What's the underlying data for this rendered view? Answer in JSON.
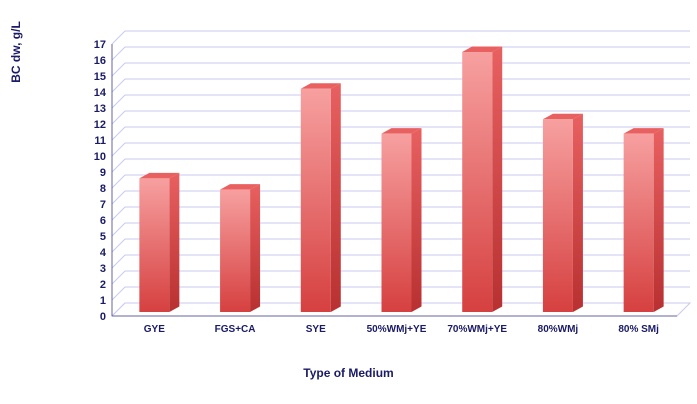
{
  "chart_data": {
    "type": "bar",
    "title": "",
    "xlabel": "Type of Medium",
    "ylabel": "BC dw, g/L",
    "categories": [
      "GYE",
      "FGS+CA",
      "SYE",
      "50%WMj+YE",
      "70%WMj+YE",
      "80%WMj",
      "80% SMj"
    ],
    "values": [
      8.6,
      7.9,
      14.2,
      11.4,
      16.5,
      12.3,
      11.4
    ],
    "ylim": [
      0,
      17
    ],
    "yticks": [
      0,
      1,
      2,
      3,
      4,
      5,
      6,
      7,
      8,
      9,
      10,
      11,
      12,
      13,
      14,
      15,
      16,
      17
    ],
    "grid": true,
    "legend": "none",
    "style": "3d",
    "colors": {
      "bar_top": "#f7a0a0",
      "bar_bottom": "#d64040",
      "bar_side": "#b83030",
      "bar_cap": "#e86060",
      "gridline": "#c8c8f0",
      "axis": "#6666a0",
      "text": "#1a1a66"
    }
  }
}
